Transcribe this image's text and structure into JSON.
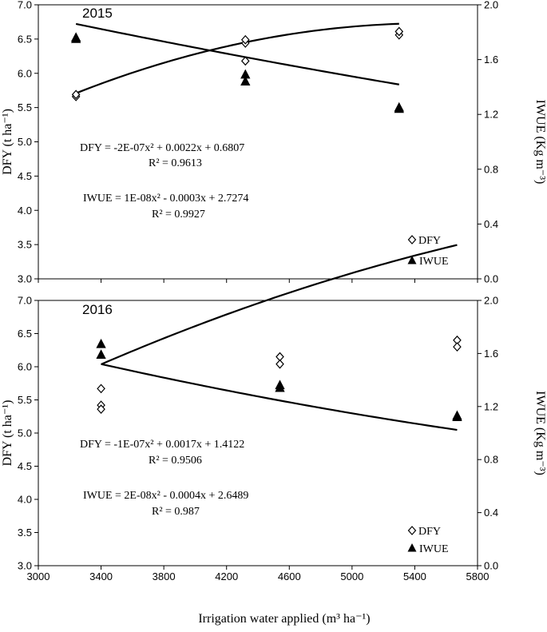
{
  "xlabel": "Irrigation water applied (m³ ha⁻¹)",
  "ylabel_left": "DFY (t ha⁻¹)",
  "ylabel_right": "IWUE (Kg m⁻³)",
  "chart_data": [
    {
      "type": "scatter",
      "title": "2015",
      "xlim": [
        3000,
        5800
      ],
      "x_ticks": [
        3000,
        3400,
        3800,
        4200,
        4600,
        5000,
        5400,
        5800
      ],
      "ylim_left": [
        3.0,
        7.0
      ],
      "ylim_right": [
        0.0,
        2.0
      ],
      "y_ticks_left": [
        "3.0",
        "3.5",
        "4.0",
        "4.5",
        "5.0",
        "5.5",
        "6.0",
        "6.5",
        "7.0"
      ],
      "y_ticks_right": [
        "0.0",
        "0.4",
        "0.8",
        "1.2",
        "1.6",
        "2.0"
      ],
      "series": [
        {
          "name": "DFY",
          "axis": "left",
          "marker": "diamond-open",
          "points": [
            [
              3240,
              5.66
            ],
            [
              3240,
              5.69
            ],
            [
              4320,
              6.44
            ],
            [
              4320,
              6.49
            ],
            [
              4320,
              6.18
            ],
            [
              5300,
              6.56
            ],
            [
              5300,
              6.61
            ]
          ],
          "fit": {
            "a": -2e-07,
            "b": 0.0022,
            "c": 0.6807,
            "xmin": 3240,
            "xmax": 5300
          },
          "equation": "DFY = -2E-07x² + 0.0022x + 0.6807",
          "r2": "R² = 0.9613"
        },
        {
          "name": "IWUE",
          "axis": "right",
          "marker": "triangle-filled",
          "points": [
            [
              3240,
              1.76
            ],
            [
              3240,
              1.75
            ],
            [
              4320,
              1.49
            ],
            [
              4320,
              1.44
            ],
            [
              5300,
              1.25
            ],
            [
              5300,
              1.24
            ]
          ],
          "fit": {
            "a": 1e-08,
            "b": -0.0003,
            "c": 2.7274,
            "xmin": 3240,
            "xmax": 5300
          },
          "equation": "IWUE = 1E-08x² - 0.0003x + 2.7274",
          "r2": "R² = 0.9927"
        }
      ]
    },
    {
      "type": "scatter",
      "title": "2016",
      "xlim": [
        3000,
        5800
      ],
      "x_ticks": [
        3000,
        3400,
        3800,
        4200,
        4600,
        5000,
        5400,
        5800
      ],
      "ylim_left": [
        3.0,
        7.0
      ],
      "ylim_right": [
        0.0,
        2.0
      ],
      "y_ticks_left": [
        "3.0",
        "3.5",
        "4.0",
        "4.5",
        "5.0",
        "5.5",
        "6.0",
        "6.5",
        "7.0"
      ],
      "y_ticks_right": [
        "0.0",
        "0.4",
        "0.8",
        "1.2",
        "1.6",
        "2.0"
      ],
      "series": [
        {
          "name": "DFY",
          "axis": "left",
          "marker": "diamond-open",
          "points": [
            [
              3400,
              5.67
            ],
            [
              3400,
              5.42
            ],
            [
              3400,
              5.36
            ],
            [
              4540,
              6.15
            ],
            [
              4540,
              6.04
            ],
            [
              5670,
              6.4
            ],
            [
              5670,
              6.3
            ]
          ],
          "fit": {
            "a": -1e-07,
            "b": 0.0017,
            "c": 1.4122,
            "xmin": 3400,
            "xmax": 5670
          },
          "equation": "DFY = -1E-07x² + 0.0017x + 1.4122",
          "r2": "R² = 0.9506"
        },
        {
          "name": "IWUE",
          "axis": "right",
          "marker": "triangle-filled",
          "points": [
            [
              3400,
              1.67
            ],
            [
              3400,
              1.59
            ],
            [
              4540,
              1.36
            ],
            [
              4540,
              1.34
            ],
            [
              5670,
              1.13
            ],
            [
              5670,
              1.12
            ]
          ],
          "fit": {
            "a": 2e-08,
            "b": -0.0004,
            "c": 2.6489,
            "xmin": 3400,
            "xmax": 5670
          },
          "equation": "IWUE = 2E-08x² - 0.0004x + 2.6489",
          "r2": "R² = 0.987"
        }
      ]
    }
  ]
}
